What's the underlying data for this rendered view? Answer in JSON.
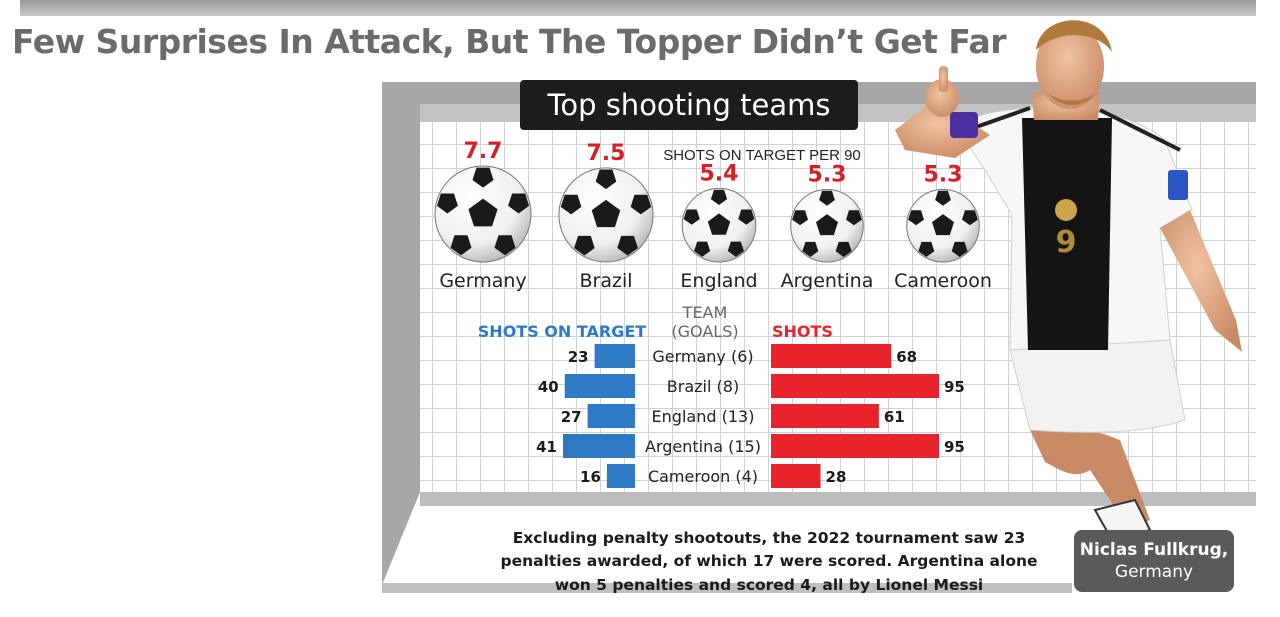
{
  "headline": "Few Surprises In Attack, But The Topper Didn’t Get Far",
  "panel_title": "Top shooting teams",
  "colors": {
    "shots_on_target": "#2f7ac4",
    "shots": "#e8232b",
    "rate": "#d62028",
    "net_frame": "#a6a6a6"
  },
  "chart_data": [
    {
      "type": "bar",
      "title": "SHOTS ON TARGET PER 90",
      "categories": [
        "Germany",
        "Brazil",
        "England",
        "Argentina",
        "Cameroon"
      ],
      "values": [
        7.7,
        7.5,
        5.4,
        5.3,
        5.3
      ],
      "value_labels": [
        "7.7",
        "7.5",
        "5.4",
        "5.3",
        "5.3"
      ],
      "encoding": "ball size scales with value"
    },
    {
      "type": "bar",
      "orientation": "horizontal",
      "center_header": [
        "TEAM",
        "(GOALS)"
      ],
      "categories": [
        "Germany (6)",
        "Brazil (8)",
        "England (13)",
        "Argentina (15)",
        "Cameroon (4)"
      ],
      "series": [
        {
          "name": "SHOTS ON TARGET",
          "values": [
            23,
            40,
            27,
            41,
            16
          ],
          "direction": "left"
        },
        {
          "name": "SHOTS",
          "values": [
            68,
            95,
            61,
            95,
            28
          ],
          "direction": "right"
        }
      ]
    }
  ],
  "footnote": "Excluding penalty shootouts, the 2022 tournament saw 23 penalties awarded, of which 17 were scored. Argentina alone won 5 penalties and scored 4, all by Lionel Messi",
  "caption": {
    "name": "Niclas Fullkrug,",
    "country": "Germany"
  }
}
